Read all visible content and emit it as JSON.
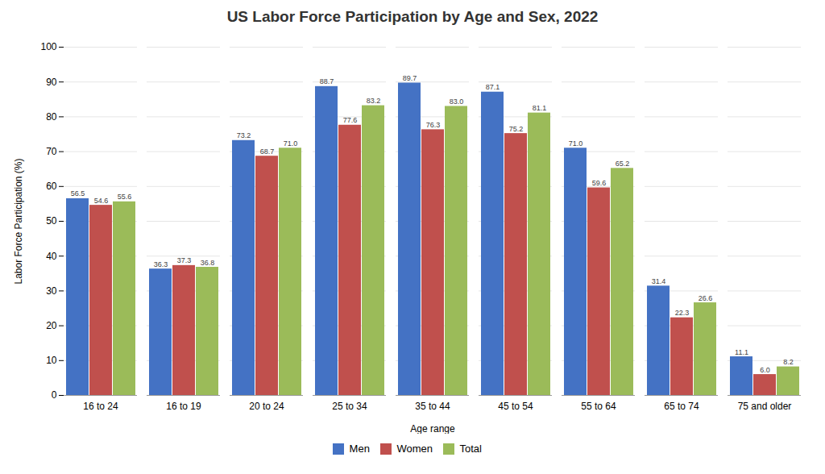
{
  "chart_data": {
    "type": "bar",
    "title": "US Labor Force Participation by Age and Sex, 2022",
    "xlabel": "Age range",
    "ylabel": "Labor Force Participation (%)",
    "categories": [
      "16 to 24",
      "16 to 19",
      "20 to 24",
      "25 to 34",
      "35 to 44",
      "45 to 54",
      "55 to 64",
      "65 to 74",
      "75 and older"
    ],
    "series": [
      {
        "name": "Men",
        "color": "#4472C4",
        "values": [
          56.5,
          36.3,
          73.2,
          88.7,
          89.7,
          87.1,
          71.0,
          31.4,
          11.1
        ],
        "value_labels": [
          "56.5",
          "36.3",
          "73.2",
          "88.7",
          "89.7",
          "87.1",
          "71.0",
          "31.4",
          "11.1"
        ]
      },
      {
        "name": "Women",
        "color": "#C0504D",
        "values": [
          54.6,
          37.3,
          68.7,
          77.6,
          76.3,
          75.2,
          59.6,
          22.3,
          6.0
        ],
        "value_labels": [
          "54.6",
          "37.3",
          "68.7",
          "77.6",
          "76.3",
          "75.2",
          "59.6",
          "22.3",
          "6.0"
        ]
      },
      {
        "name": "Total",
        "color": "#9BBB59",
        "values": [
          55.6,
          36.8,
          71.0,
          83.2,
          83.0,
          81.1,
          65.2,
          26.6,
          8.2
        ],
        "value_labels": [
          "55.6",
          "36.8",
          "71.0",
          "83.2",
          "83.0",
          "81.1",
          "65.2",
          "26.6",
          "8.2"
        ]
      }
    ],
    "ylim": [
      0,
      100
    ],
    "yticks": [
      0,
      10,
      20,
      30,
      40,
      50,
      60,
      70,
      80,
      90,
      100
    ],
    "grid": true,
    "legend": "bottom",
    "data_labels": true
  }
}
